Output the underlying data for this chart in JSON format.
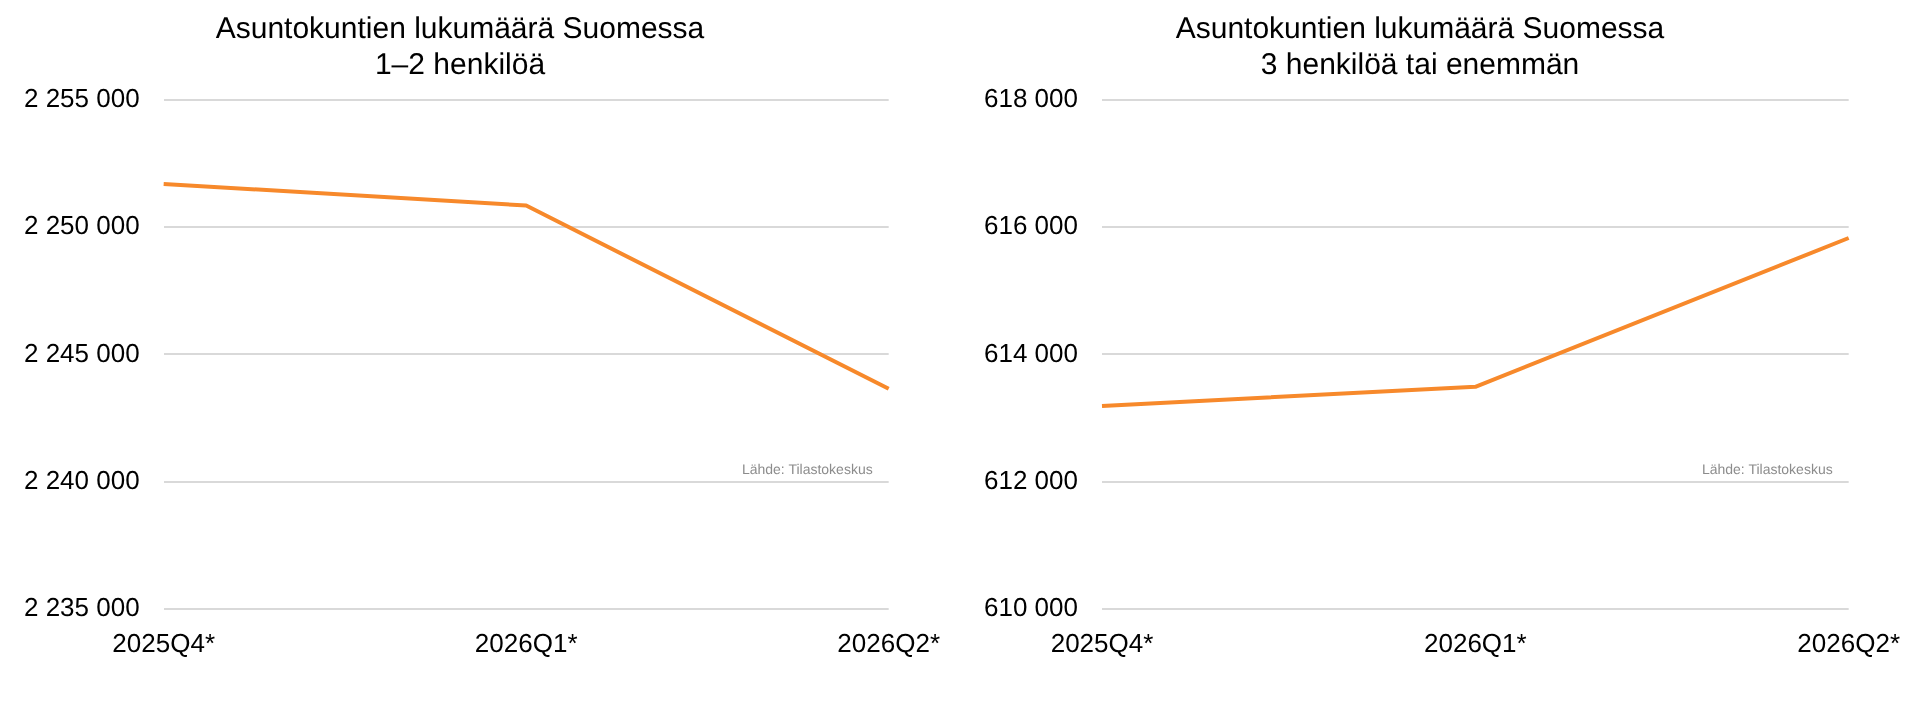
{
  "chart_data": [
    {
      "type": "line",
      "title": "Asuntokuntien lukumäärä Suomessa",
      "subtitle": "1–2 henkilöä",
      "categories": [
        "2025Q4*",
        "2026Q1*",
        "2026Q2*"
      ],
      "series": [
        {
          "color": "#f7892b",
          "values": [
            2251700,
            2250850,
            2243650
          ]
        }
      ],
      "ylim": [
        2235000,
        2255000
      ],
      "yticks": [
        {
          "value": 2235000,
          "label": "2 235 000"
        },
        {
          "value": 2240000,
          "label": "2 240 000"
        },
        {
          "value": 2245000,
          "label": "2 245 000"
        },
        {
          "value": 2250000,
          "label": "2 250 000"
        },
        {
          "value": 2255000,
          "label": "2 255 000"
        }
      ],
      "grid": "y",
      "legend": false,
      "marker": "none",
      "line_style": "solid",
      "annotations": [
        "Lähde: Tilastokeskus"
      ]
    },
    {
      "type": "line",
      "title": "Asuntokuntien lukumäärä Suomessa",
      "subtitle": "3 henkilöä tai enemmän",
      "categories": [
        "2025Q4*",
        "2026Q1*",
        "2026Q2*"
      ],
      "series": [
        {
          "color": "#f7892b",
          "values": [
            613190,
            613490,
            615830
          ]
        }
      ],
      "ylim": [
        610000,
        618000
      ],
      "yticks": [
        {
          "value": 610000,
          "label": "610 000"
        },
        {
          "value": 612000,
          "label": "612 000"
        },
        {
          "value": 614000,
          "label": "614 000"
        },
        {
          "value": 616000,
          "label": "616 000"
        },
        {
          "value": 618000,
          "label": "618 000"
        }
      ],
      "grid": "y",
      "legend": false,
      "marker": "none",
      "line_style": "solid",
      "annotations": [
        "Lähde: Tilastokeskus"
      ]
    }
  ]
}
